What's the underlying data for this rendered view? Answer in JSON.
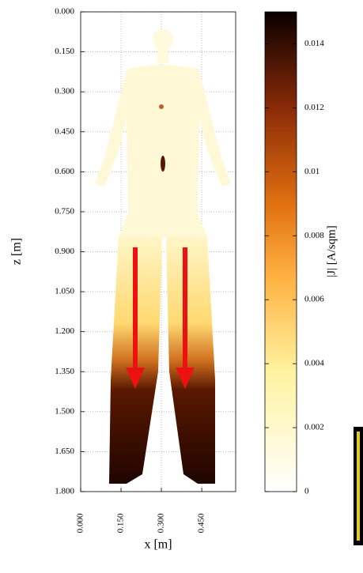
{
  "chart_data": {
    "type": "heatmap",
    "xlabel": "x [m]",
    "ylabel": "z [m]",
    "colorbar_label": "|J| [A/sqm]",
    "xlim": [
      0,
      0.576
    ],
    "ylim": [
      0,
      1.8
    ],
    "y_inverted": true,
    "xticks": [
      {
        "value": 0,
        "label": "0.000"
      },
      {
        "value": 0.15,
        "label": "0.150"
      },
      {
        "value": 0.3,
        "label": "0.300"
      },
      {
        "value": 0.45,
        "label": "0.450"
      }
    ],
    "yticks": [
      {
        "value": 0,
        "label": "0.000"
      },
      {
        "value": 0.15,
        "label": "0.150"
      },
      {
        "value": 0.3,
        "label": "0.300"
      },
      {
        "value": 0.45,
        "label": "0.450"
      },
      {
        "value": 0.6,
        "label": "0.600"
      },
      {
        "value": 0.75,
        "label": "0.750"
      },
      {
        "value": 0.9,
        "label": "0.900"
      },
      {
        "value": 1.05,
        "label": "1.050"
      },
      {
        "value": 1.2,
        "label": "1.200"
      },
      {
        "value": 1.35,
        "label": "1.350"
      },
      {
        "value": 1.5,
        "label": "1.500"
      },
      {
        "value": 1.65,
        "label": "1.650"
      },
      {
        "value": 1.8,
        "label": "1.800"
      }
    ],
    "clim": [
      0,
      0.015
    ],
    "cticks": [
      0,
      0.002,
      0.004,
      0.006,
      0.008,
      0.01,
      0.012,
      0.014
    ],
    "grid": true
  }
}
